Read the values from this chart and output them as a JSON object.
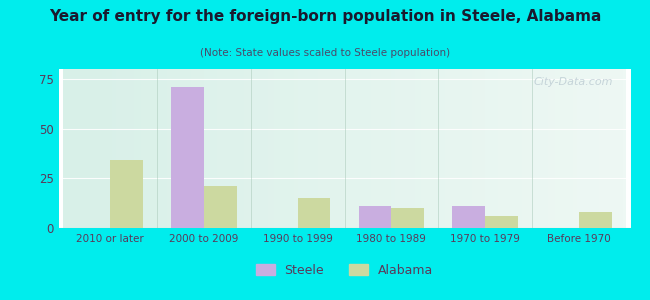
{
  "title": "Year of entry for the foreign-born population in Steele, Alabama",
  "subtitle": "(Note: State values scaled to Steele population)",
  "categories": [
    "2010 or later",
    "2000 to 2009",
    "1990 to 1999",
    "1980 to 1989",
    "1970 to 1979",
    "Before 1970"
  ],
  "steele_values": [
    0,
    71,
    0,
    11,
    11,
    0
  ],
  "alabama_values": [
    34,
    21,
    15,
    10,
    6,
    8
  ],
  "steele_color": "#c9aee0",
  "alabama_color": "#ccd9a0",
  "background_outer": "#00eded",
  "background_inner_left": "#d8f0e8",
  "background_inner_right": "#eef8f4",
  "ylim": [
    0,
    80
  ],
  "yticks": [
    0,
    25,
    50,
    75
  ],
  "bar_width": 0.35,
  "title_color": "#1a1a2e",
  "subtitle_color": "#4a4a6a",
  "tick_color": "#5a3a5a",
  "watermark": "City-Data.com",
  "figsize": [
    6.5,
    3.0
  ],
  "dpi": 100
}
